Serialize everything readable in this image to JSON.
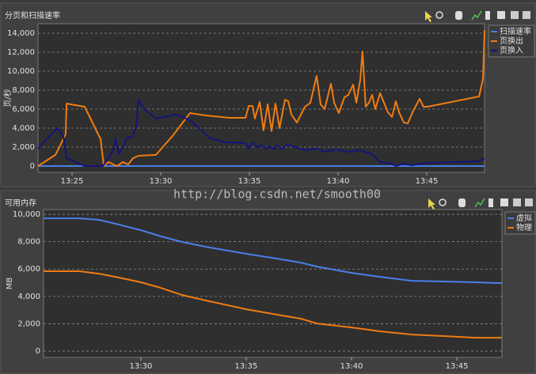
{
  "chart_data": [
    {
      "type": "line",
      "title": "分页和扫描速率",
      "ylabel": "页/秒",
      "grid": true,
      "legend": "upper right",
      "xlim": [
        803.08,
        828.26
      ],
      "ylim": [
        -670,
        15000
      ],
      "xticks": [
        {
          "value": 805,
          "label": "13:25"
        },
        {
          "value": 810,
          "label": "13:30"
        },
        {
          "value": 815,
          "label": "13:35"
        },
        {
          "value": 820,
          "label": "13:40"
        },
        {
          "value": 825,
          "label": "13:45"
        }
      ],
      "yticks": [
        0,
        {
          "value": 2000,
          "label": "2,000"
        },
        {
          "value": 4000,
          "label": "4,000"
        },
        {
          "value": 6000,
          "label": "6,000"
        },
        {
          "value": 8000,
          "label": "8,000"
        },
        {
          "value": 10000,
          "label": "10,000"
        },
        {
          "value": 12000,
          "label": "12,000"
        },
        {
          "value": 14000,
          "label": "14,000"
        }
      ],
      "series": [
        {
          "name": "扫描速率",
          "color": "#4a7fe8",
          "x": [
            803.08,
            828.26
          ],
          "values": [
            0,
            0
          ]
        },
        {
          "name": "页换出",
          "color": "#f07c12",
          "x": [
            803.08,
            804.06,
            804.64,
            804.69,
            805.71,
            806.61,
            806.79,
            807.05,
            807.32,
            807.54,
            807.86,
            808.17,
            808.44,
            808.75,
            809.73,
            810.67,
            811.65,
            812.54,
            813.88,
            814.78,
            814.96,
            815.18,
            815.31,
            815.58,
            815.8,
            816.03,
            816.25,
            816.47,
            816.7,
            817.01,
            817.19,
            817.37,
            817.68,
            818.13,
            818.44,
            818.79,
            819.02,
            819.24,
            819.6,
            819.78,
            820.04,
            820.36,
            820.58,
            820.85,
            821.03,
            821.25,
            821.38,
            821.56,
            821.74,
            821.92,
            822.1,
            822.37,
            822.59,
            822.81,
            823.04,
            823.26,
            823.44,
            823.71,
            823.93,
            824.24,
            824.6,
            824.82,
            825.04,
            827.95,
            828.17,
            828.26
          ],
          "values": [
            0,
            1170,
            3330,
            6580,
            6250,
            2830,
            0,
            420,
            170,
            0,
            420,
            170,
            830,
            1080,
            1170,
            3170,
            5580,
            5330,
            5080,
            5080,
            6330,
            6330,
            5000,
            6750,
            3750,
            6500,
            3670,
            6580,
            4000,
            7000,
            6830,
            5420,
            4580,
            6250,
            6670,
            9500,
            6500,
            6000,
            8670,
            6670,
            5580,
            7250,
            7500,
            8580,
            6670,
            9080,
            12080,
            6250,
            6670,
            7500,
            6000,
            7670,
            6670,
            5670,
            5170,
            6830,
            5670,
            4580,
            4500,
            5830,
            7080,
            6250,
            6250,
            7330,
            9170,
            14330
          ]
        },
        {
          "name": "页换入",
          "color": "#14147a",
          "x": [
            803.08,
            803.62,
            804.15,
            804.51,
            804.69,
            805.4,
            805.71,
            806.74,
            807.1,
            807.32,
            807.46,
            807.63,
            807.9,
            808.08,
            808.39,
            808.62,
            808.75,
            809.06,
            809.73,
            810.85,
            811.65,
            812.77,
            813.66,
            814.78,
            814.96,
            815.18,
            815.45,
            815.67,
            815.94,
            816.16,
            816.38,
            816.56,
            816.83,
            817.1,
            817.46,
            818.13,
            818.79,
            819.24,
            819.91,
            820.58,
            821.25,
            821.92,
            822.37,
            823.04,
            823.26,
            823.71,
            824.15,
            825.04,
            826.83,
            827.95,
            828.26
          ],
          "values": [
            1830,
            2920,
            4000,
            3170,
            830,
            250,
            0,
            0,
            920,
            1670,
            2920,
            1250,
            2080,
            2920,
            3080,
            4170,
            7000,
            6000,
            5000,
            5420,
            4830,
            2920,
            2500,
            2420,
            1830,
            2500,
            2000,
            2170,
            1830,
            2080,
            1750,
            2170,
            1830,
            2250,
            2080,
            1670,
            1830,
            1500,
            1750,
            1500,
            1670,
            1250,
            420,
            250,
            0,
            250,
            80,
            330,
            420,
            500,
            830
          ]
        }
      ]
    },
    {
      "type": "line",
      "title": "可用内存",
      "ylabel": "MB",
      "grid": true,
      "legend": "upper right",
      "xlim": [
        805.38,
        827.14
      ],
      "ylim": [
        -460,
        10350
      ],
      "xticks": [
        {
          "value": 810,
          "label": "13:30"
        },
        {
          "value": 815,
          "label": "13:35"
        },
        {
          "value": 820,
          "label": "13:40"
        },
        {
          "value": 825,
          "label": "13:45"
        }
      ],
      "yticks": [
        0,
        {
          "value": 2000,
          "label": "2,000"
        },
        {
          "value": 4000,
          "label": "4,000"
        },
        {
          "value": 6000,
          "label": "6,000"
        },
        {
          "value": 8000,
          "label": "8,000"
        },
        {
          "value": 10000,
          "label": "10,000"
        }
      ],
      "series": [
        {
          "name": "虚拟",
          "color": "#4a7fe8",
          "x": [
            805.38,
            807.07,
            808.01,
            808.95,
            810,
            810.83,
            811.95,
            813.08,
            815,
            816.47,
            817.59,
            818.35,
            820,
            821.35,
            822.86,
            824.36,
            825.86,
            827.14
          ],
          "values": [
            9710,
            9710,
            9600,
            9250,
            8840,
            8440,
            7980,
            7630,
            7110,
            6760,
            6470,
            6180,
            5720,
            5430,
            5140,
            5090,
            5030,
            4970
          ]
        },
        {
          "name": "物理",
          "color": "#f07c12",
          "x": [
            805.38,
            807.07,
            808.01,
            808.95,
            810,
            810.83,
            811.95,
            813.08,
            815,
            816.47,
            817.59,
            818.35,
            820,
            821.35,
            822.86,
            824.36,
            825.86,
            827.14
          ],
          "values": [
            5840,
            5840,
            5660,
            5380,
            5030,
            4680,
            4100,
            3700,
            3060,
            2660,
            2370,
            2020,
            1730,
            1450,
            1210,
            1100,
            980,
            980
          ]
        }
      ]
    }
  ],
  "watermark": "http://blog.csdn.net/smooth00"
}
